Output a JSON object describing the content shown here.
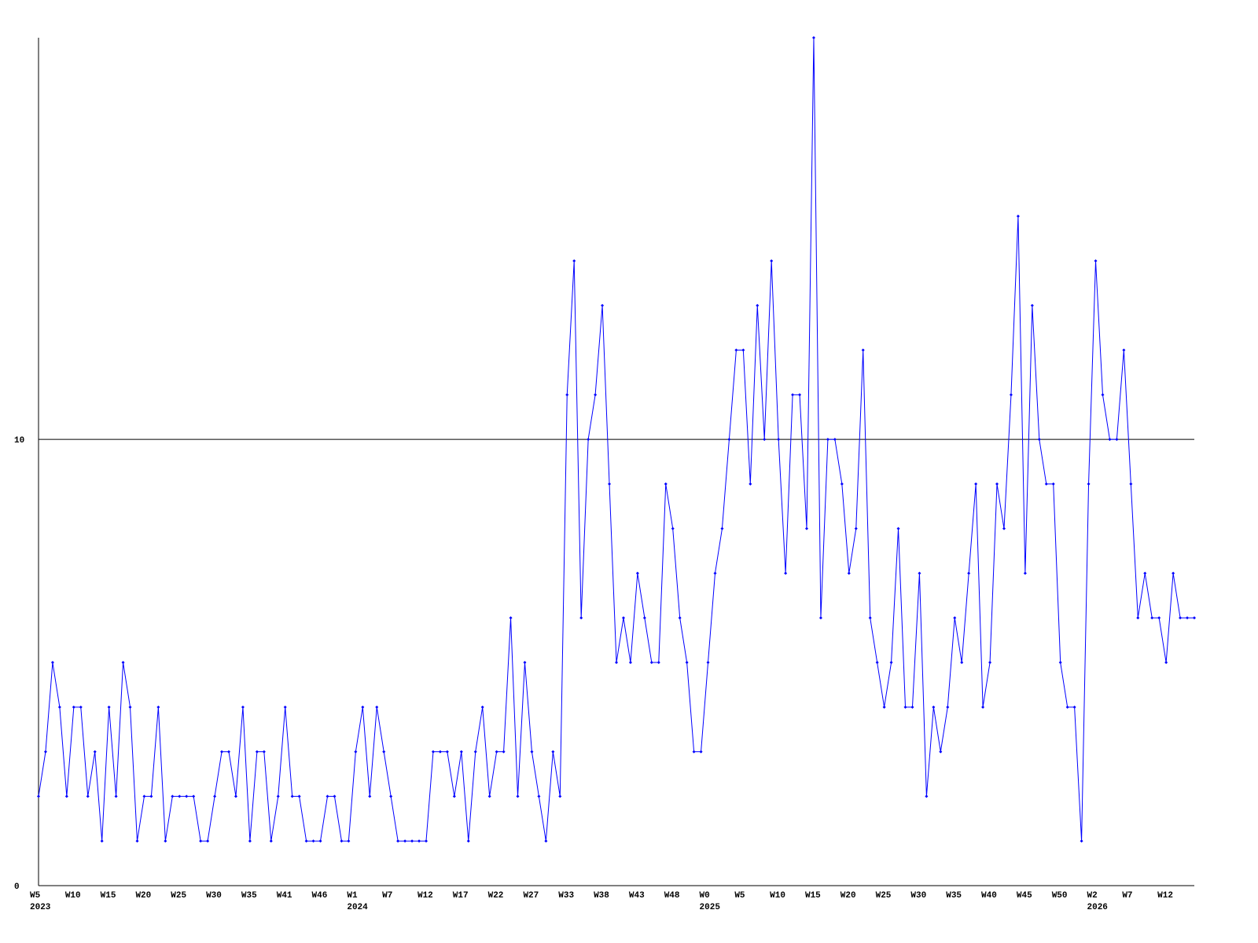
{
  "chart_data": {
    "type": "line",
    "categories": [
      "W5",
      null,
      null,
      null,
      null,
      "W10",
      null,
      null,
      null,
      null,
      "W15",
      null,
      null,
      null,
      null,
      "W20",
      null,
      null,
      null,
      null,
      "W25",
      null,
      null,
      null,
      null,
      "W30",
      null,
      null,
      null,
      null,
      "W35",
      null,
      null,
      null,
      null,
      "W41",
      null,
      null,
      null,
      null,
      "W46",
      null,
      null,
      null,
      null,
      "W1",
      null,
      null,
      null,
      null,
      "W7",
      null,
      null,
      null,
      null,
      "W12",
      null,
      null,
      null,
      null,
      "W17",
      null,
      null,
      null,
      null,
      "W22",
      null,
      null,
      null,
      null,
      "W27",
      null,
      null,
      null,
      null,
      "W33",
      null,
      null,
      null,
      null,
      "W38",
      null,
      null,
      null,
      null,
      "W43",
      null,
      null,
      null,
      null,
      "W48",
      null,
      null,
      null,
      null,
      "W0",
      null,
      null,
      null,
      null,
      "W5",
      null,
      null,
      null,
      null,
      "W10",
      null,
      null,
      null,
      null,
      "W15",
      null,
      null,
      null,
      null,
      "W20",
      null,
      null,
      null,
      null,
      "W25",
      null,
      null,
      null,
      null,
      "W30",
      null,
      null,
      null,
      null,
      "W35",
      null,
      null,
      null,
      null,
      "W40",
      null,
      null,
      null,
      null,
      "W45",
      null,
      null,
      null,
      null,
      "W50",
      null,
      null,
      null,
      null,
      "W2",
      null,
      null,
      null,
      null,
      "W7",
      null,
      null,
      null,
      null,
      "W12",
      null,
      null,
      null,
      null
    ],
    "years": [
      "2023",
      null,
      null,
      null,
      null,
      null,
      null,
      null,
      null,
      null,
      null,
      null,
      null,
      null,
      null,
      null,
      null,
      null,
      null,
      null,
      null,
      null,
      null,
      null,
      null,
      null,
      null,
      null,
      null,
      null,
      null,
      null,
      null,
      null,
      null,
      null,
      null,
      null,
      null,
      null,
      null,
      null,
      null,
      null,
      null,
      "2024",
      null,
      null,
      null,
      null,
      null,
      null,
      null,
      null,
      null,
      null,
      null,
      null,
      null,
      null,
      null,
      null,
      null,
      null,
      null,
      null,
      null,
      null,
      null,
      null,
      null,
      null,
      null,
      null,
      null,
      null,
      null,
      null,
      null,
      null,
      null,
      null,
      null,
      null,
      null,
      null,
      null,
      null,
      null,
      null,
      null,
      null,
      null,
      null,
      null,
      "2025",
      null,
      null,
      null,
      null,
      null,
      null,
      null,
      null,
      null,
      null,
      null,
      null,
      null,
      null,
      null,
      null,
      null,
      null,
      null,
      null,
      null,
      null,
      null,
      null,
      null,
      null,
      null,
      null,
      null,
      null,
      null,
      null,
      null,
      null,
      null,
      null,
      null,
      null,
      null,
      null,
      null,
      null,
      null,
      null,
      null,
      null,
      null,
      null,
      null,
      null,
      null,
      null,
      null,
      null,
      "2026",
      null,
      null,
      null,
      null,
      null,
      null,
      null,
      null,
      null,
      null,
      null,
      null,
      null,
      null
    ],
    "series": [
      {
        "color": "#0000ff",
        "values": [
          2,
          3,
          5,
          4,
          2,
          4,
          4,
          2,
          3,
          1,
          4,
          2,
          5,
          4,
          1,
          2,
          2,
          4,
          1,
          2,
          2,
          2,
          2,
          1,
          1,
          2,
          3,
          3,
          2,
          4,
          1,
          3,
          3,
          1,
          2,
          4,
          2,
          2,
          1,
          1,
          1,
          2,
          2,
          1,
          1,
          3,
          4,
          2,
          4,
          3,
          2,
          1,
          1,
          1,
          1,
          1,
          3,
          3,
          3,
          2,
          3,
          1,
          3,
          4,
          2,
          3,
          3,
          6,
          2,
          5,
          3,
          2,
          1,
          3,
          2,
          11,
          14,
          6,
          10,
          11,
          13,
          9,
          5,
          6,
          5,
          7,
          6,
          5,
          5,
          9,
          8,
          6,
          5,
          3,
          3,
          5,
          7,
          8,
          10,
          12,
          12,
          9,
          13,
          10,
          14,
          10,
          7,
          11,
          11,
          8,
          19,
          6,
          10,
          10,
          9,
          7,
          8,
          12,
          6,
          5,
          4,
          5,
          8,
          4,
          4,
          7,
          2,
          4,
          3,
          4,
          6,
          5,
          7,
          9,
          4,
          5,
          9,
          8,
          11,
          15,
          7,
          13,
          10,
          9,
          9,
          5,
          4,
          4,
          1,
          9,
          14,
          11,
          10,
          10,
          12,
          9,
          6,
          7,
          6,
          6,
          5,
          7,
          6,
          6,
          6
        ]
      }
    ],
    "ylim": [
      0,
      19
    ],
    "yticks": [
      0,
      10
    ],
    "grid": true
  }
}
